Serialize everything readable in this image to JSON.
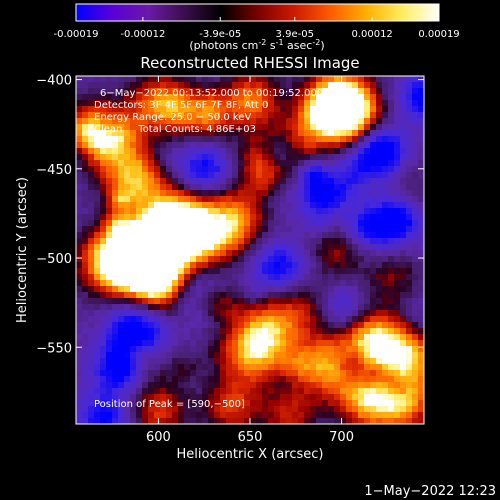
{
  "colorbar": {
    "tick_labels": [
      "-0.00019",
      "-0.00012",
      "-3.9e-05",
      "3.9e-05",
      "0.00012",
      "0.00019"
    ],
    "tick_values": [
      -0.00019,
      -0.00012,
      -3.9e-05,
      3.9e-05,
      0.00012,
      0.00019
    ],
    "range": [
      -0.00019,
      0.00019
    ],
    "units_label": "(photons cm",
    "units_parts": [
      "(photons cm",
      "-2",
      " s",
      "-1",
      " asec",
      "-2",
      ")"
    ],
    "gradient_colors": [
      "#0000ff",
      "#5a00d8",
      "#6a1aa6",
      "#3a0e4a",
      "#000000",
      "#7a0000",
      "#cc1a00",
      "#ff5a00",
      "#ffb000",
      "#ffee60",
      "#ffffff"
    ]
  },
  "chart_data": {
    "type": "heatmap",
    "title": "Reconstructed RHESSI Image",
    "xlabel": "Heliocentric X (arcsec)",
    "ylabel": "Heliocentric Y (arcsec)",
    "xlim": [
      555,
      745
    ],
    "ylim": [
      -593,
      -398
    ],
    "x_ticks": [
      600,
      650,
      700
    ],
    "y_ticks": [
      -400,
      -450,
      -500,
      -550
    ],
    "x_tick_labels": [
      "600",
      "650",
      "700"
    ],
    "y_tick_labels": [
      "−400",
      "−450",
      "−500",
      "−550"
    ],
    "annotations": [
      "6−May−2022 00:13:52.000 to 00:19:52.000",
      "Detectors: 3F 4F 5F 6F 7F 8F, Att 0",
      "Energy Range: 25.0 − 50.0 keV",
      "Clean     Total Counts: 4.86E+03"
    ],
    "peak_label": "Position of Peak = [590,−500]",
    "peak": [
      590,
      -500
    ],
    "bright_regions": [
      {
        "x": 618,
        "y": -488,
        "level": 1.0
      },
      {
        "x": 605,
        "y": -478,
        "level": 0.85
      },
      {
        "x": 640,
        "y": -480,
        "level": 0.8
      },
      {
        "x": 575,
        "y": -502,
        "level": 0.9
      },
      {
        "x": 590,
        "y": -500,
        "level": 1.0
      },
      {
        "x": 600,
        "y": -512,
        "level": 0.75
      },
      {
        "x": 585,
        "y": -455,
        "level": 0.7
      },
      {
        "x": 575,
        "y": -430,
        "level": 0.75
      },
      {
        "x": 562,
        "y": -430,
        "level": 0.65
      },
      {
        "x": 600,
        "y": -412,
        "level": 0.6
      },
      {
        "x": 622,
        "y": -418,
        "level": 0.55
      },
      {
        "x": 650,
        "y": -412,
        "level": 0.7
      },
      {
        "x": 700,
        "y": -410,
        "level": 0.75
      },
      {
        "x": 705,
        "y": -422,
        "level": 0.85
      },
      {
        "x": 688,
        "y": -418,
        "level": 0.6
      },
      {
        "x": 655,
        "y": -450,
        "level": 0.6
      },
      {
        "x": 675,
        "y": -438,
        "level": 0.45
      },
      {
        "x": 660,
        "y": -540,
        "level": 0.75
      },
      {
        "x": 650,
        "y": -555,
        "level": 0.65
      },
      {
        "x": 690,
        "y": -560,
        "level": 0.7
      },
      {
        "x": 715,
        "y": -545,
        "level": 0.85
      },
      {
        "x": 735,
        "y": -555,
        "level": 0.8
      },
      {
        "x": 730,
        "y": -580,
        "level": 0.85
      },
      {
        "x": 710,
        "y": -578,
        "level": 0.6
      },
      {
        "x": 600,
        "y": -585,
        "level": 0.55
      },
      {
        "x": 640,
        "y": -583,
        "level": 0.55
      },
      {
        "x": 672,
        "y": -588,
        "level": 0.45
      },
      {
        "x": 683,
        "y": -528,
        "level": 0.5
      },
      {
        "x": 700,
        "y": -495,
        "level": 0.5
      },
      {
        "x": 740,
        "y": -465,
        "level": 0.35
      },
      {
        "x": 728,
        "y": -510,
        "level": 0.35
      }
    ],
    "dark_regions": [
      {
        "x": 588,
        "y": -540,
        "level": -0.9
      },
      {
        "x": 578,
        "y": -562,
        "level": -0.6
      },
      {
        "x": 720,
        "y": -440,
        "level": -0.85
      },
      {
        "x": 732,
        "y": -478,
        "level": -0.75
      },
      {
        "x": 690,
        "y": -462,
        "level": -0.7
      },
      {
        "x": 625,
        "y": -450,
        "level": -0.55
      },
      {
        "x": 665,
        "y": -505,
        "level": -0.55
      },
      {
        "x": 700,
        "y": -530,
        "level": -0.5
      },
      {
        "x": 620,
        "y": -520,
        "level": -0.45
      },
      {
        "x": 570,
        "y": -590,
        "level": -0.55
      },
      {
        "x": 745,
        "y": -410,
        "level": -0.6
      },
      {
        "x": 712,
        "y": -488,
        "level": -0.5
      }
    ]
  },
  "footer": {
    "timestamp": "1−May−2022 12:23"
  }
}
